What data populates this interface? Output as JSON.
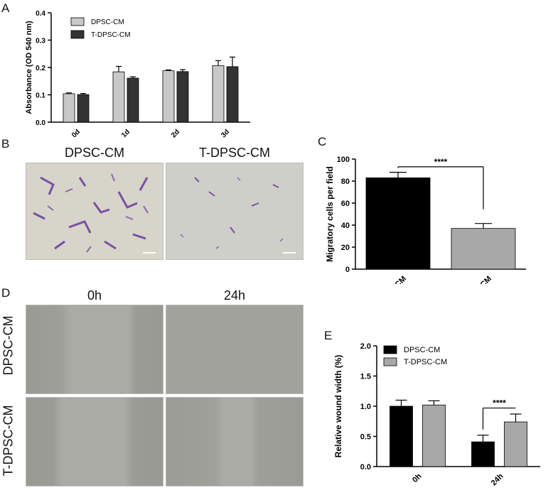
{
  "panels": {
    "A": "A",
    "B": "B",
    "C": "C",
    "D": "D",
    "E": "E"
  },
  "panel_b": {
    "col_labels": [
      "DPSC-CM",
      "T-DPSC-CM"
    ],
    "photo_colors": {
      "stain": "#7a4fa8",
      "background": "#d6d3c8"
    }
  },
  "panel_d": {
    "col_labels": [
      "0h",
      "24h"
    ],
    "row_labels": [
      "DPSC-CM",
      "T-DPSC-CM"
    ],
    "photo_colors": {
      "field": "#a9a9a4",
      "cells": "#8c8c86"
    }
  },
  "colors": {
    "light_bar": "#c8c8c8",
    "dark_bar": "#333333",
    "black_bar": "#000000",
    "gray_bar": "#a8a8a8"
  },
  "chart_data": [
    {
      "id": "A",
      "type": "bar",
      "categories": [
        "0d",
        "1d",
        "2d",
        "3d"
      ],
      "series": [
        {
          "name": "DPSC-CM",
          "color": "#c8c8c8",
          "values": [
            0.104,
            0.184,
            0.188,
            0.207
          ],
          "errors": [
            0.003,
            0.02,
            0.003,
            0.018
          ]
        },
        {
          "name": "T-DPSC-CM",
          "color": "#333333",
          "values": [
            0.101,
            0.161,
            0.185,
            0.203
          ],
          "errors": [
            0.004,
            0.005,
            0.007,
            0.035
          ]
        }
      ],
      "ylabel": "Absorbance (OD 540 nm)",
      "ylim": [
        0,
        0.4
      ],
      "yticks": [
        "0.0",
        "0.1",
        "0.2",
        "0.3",
        "0.4"
      ],
      "legend": "top-left"
    },
    {
      "id": "C",
      "type": "bar",
      "categories": [
        "DPSC-CM",
        "T-DPSC-CM"
      ],
      "values": [
        83,
        37
      ],
      "errors": [
        5,
        4.5
      ],
      "colors": [
        "#000000",
        "#a8a8a8"
      ],
      "ylabel": "Migratory cells per field",
      "ylim": [
        0,
        100
      ],
      "yticks": [
        "0",
        "20",
        "40",
        "60",
        "80",
        "100"
      ],
      "significance": "****"
    },
    {
      "id": "E",
      "type": "bar",
      "categories": [
        "0h",
        "24h"
      ],
      "series": [
        {
          "name": "DPSC-CM",
          "color": "#000000",
          "values": [
            1.0,
            0.41
          ],
          "errors": [
            0.1,
            0.11
          ]
        },
        {
          "name": "T-DPSC-CM",
          "color": "#a8a8a8",
          "values": [
            1.02,
            0.74
          ],
          "errors": [
            0.07,
            0.13
          ]
        }
      ],
      "ylabel": "Relative wound width (%)",
      "ylim": [
        0,
        2.0
      ],
      "yticks": [
        "0.0",
        "0.5",
        "1.0",
        "1.5",
        "2.0"
      ],
      "significance": "****",
      "legend": "top-left"
    }
  ]
}
